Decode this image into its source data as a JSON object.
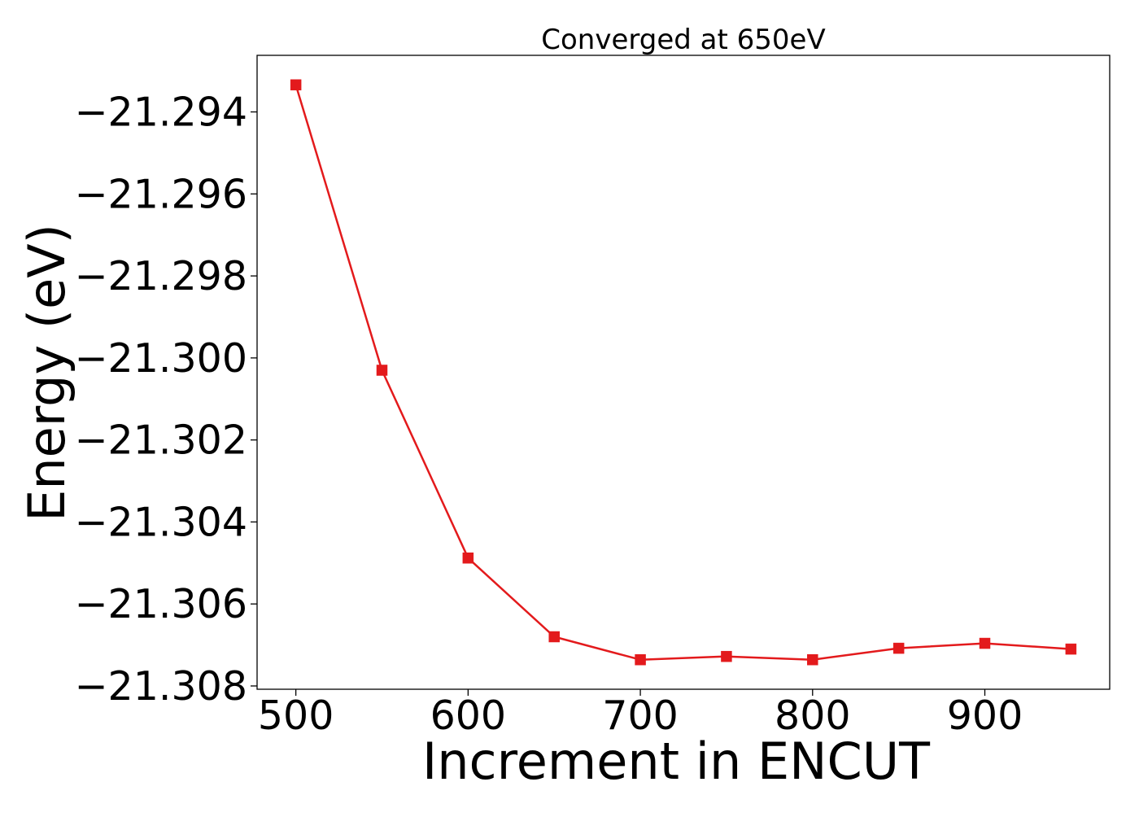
{
  "chart_data": {
    "type": "line",
    "title": "Converged at 650eV",
    "xlabel": "Increment in ENCUT",
    "ylabel": "Energy (eV)",
    "xlim": [
      477.5,
      972.5
    ],
    "ylim": [
      -21.30808,
      -21.29262
    ],
    "xticks": [
      500,
      600,
      700,
      800,
      900
    ],
    "xtick_labels": [
      "500",
      "600",
      "700",
      "800",
      "900"
    ],
    "yticks": [
      -21.294,
      -21.296,
      -21.298,
      -21.3,
      -21.302,
      -21.304,
      -21.306,
      -21.308
    ],
    "ytick_labels": [
      "−21.294",
      "−21.296",
      "−21.298",
      "−21.300",
      "−21.302",
      "−21.304",
      "−21.306",
      "−21.308"
    ],
    "grid": false,
    "legend": "none",
    "series": [
      {
        "color": "#e31a1c",
        "marker": "square",
        "x": [
          500,
          550,
          600,
          650,
          700,
          750,
          800,
          850,
          900,
          950
        ],
        "y": [
          -21.29334,
          -21.3003,
          -21.30488,
          -21.3068,
          -21.30736,
          -21.30728,
          -21.30736,
          -21.30708,
          -21.30696,
          -21.3071
        ]
      }
    ]
  }
}
